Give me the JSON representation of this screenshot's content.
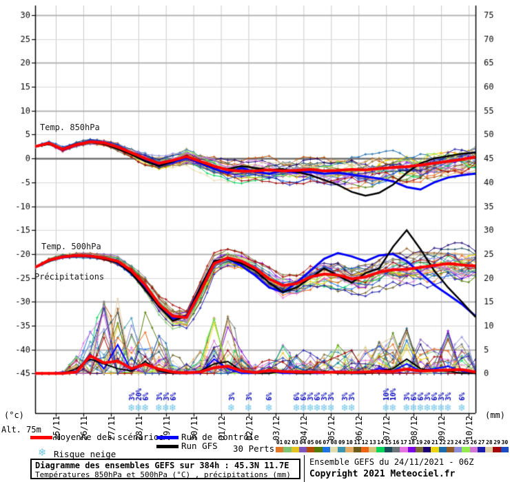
{
  "chart": {
    "alt_label": "Alt. 75m",
    "left_unit": "(°c)",
    "right_unit": "(mm)"
  },
  "chart_data": {
    "type": "line",
    "title": "Diagramme des ensembles GEFS sur 384h : 45.3N 11.7E",
    "x_axis": {
      "start": "24/11/2021 06Z",
      "hours_total": 384,
      "step_hours": 12,
      "day_labels": [
        "25/11",
        "26/11",
        "27/11",
        "28/11",
        "29/11",
        "30/11",
        "01/12",
        "02/12",
        "03/12",
        "04/12",
        "05/12",
        "06/12",
        "07/12",
        "08/12",
        "09/12",
        "10/12"
      ]
    },
    "y_left": {
      "label": "(°c)",
      "min": -45,
      "max": 30,
      "ticks": [
        30,
        25,
        20,
        15,
        10,
        5,
        0,
        -5,
        -10,
        -15,
        -20,
        -25,
        -30,
        -35,
        -40,
        -45
      ]
    },
    "y_right": {
      "label": "(mm)",
      "min": 0,
      "max": 75,
      "ticks": [
        75,
        70,
        65,
        60,
        55,
        50,
        45,
        40,
        35,
        30,
        25,
        20,
        15,
        10,
        5,
        0
      ]
    },
    "grid": {
      "minor_color": "#d6d6d6",
      "major_color": "#b4b4b4",
      "zero_color": "#6e6e6e",
      "vert_color": "#c8c8c8"
    },
    "series_styles": {
      "mean": {
        "color": "#ff0000",
        "width": 4
      },
      "control": {
        "color": "#0000ff",
        "width": 3
      },
      "gfs": {
        "color": "#000000",
        "width": 2.5
      }
    },
    "panels": {
      "t850": {
        "label": "Temp. 850hPa",
        "mean": [
          2.5,
          3.2,
          1.9,
          2.9,
          3.5,
          3.3,
          2.4,
          1.2,
          0.0,
          -1.0,
          -0.4,
          0.4,
          -0.6,
          -1.6,
          -2.4,
          -2.7,
          -2.6,
          -2.4,
          -2.6,
          -2.5,
          -2.3,
          -2.6,
          -2.5,
          -2.3,
          -2.4,
          -2.1,
          -1.9,
          -1.7,
          -1.4,
          -1.0,
          -0.6,
          -0.2,
          0.3
        ],
        "control": [
          2.5,
          3.1,
          1.8,
          2.8,
          3.6,
          3.2,
          2.2,
          1.0,
          -0.4,
          -1.4,
          -0.8,
          0.2,
          -1.0,
          -2.2,
          -3.0,
          -2.0,
          -2.8,
          -3.2,
          -2.6,
          -3.0,
          -2.8,
          -3.2,
          -3.0,
          -3.4,
          -3.8,
          -4.2,
          -4.8,
          -6.0,
          -6.5,
          -5.0,
          -4.0,
          -3.5,
          -3.2
        ],
        "gfs": [
          2.5,
          3.0,
          2.0,
          3.0,
          3.4,
          3.1,
          2.0,
          0.8,
          -0.6,
          -1.6,
          -0.6,
          0.6,
          -0.8,
          -1.8,
          -2.2,
          -1.6,
          -2.0,
          -2.4,
          -2.2,
          -2.8,
          -3.5,
          -4.5,
          -5.5,
          -7.0,
          -7.8,
          -7.2,
          -5.5,
          -3.0,
          -1.0,
          0.0,
          0.5,
          1.0,
          1.2
        ],
        "spread": [
          0.3,
          0.4,
          0.5,
          0.5,
          0.5,
          0.6,
          0.8,
          1.0,
          1.2,
          1.4,
          1.4,
          1.5,
          1.6,
          1.8,
          1.9,
          2.0,
          2.0,
          2.1,
          2.2,
          2.3,
          2.4,
          2.5,
          2.6,
          2.7,
          2.8,
          2.9,
          3.0,
          3.1,
          3.2,
          3.3,
          3.4,
          3.5,
          3.6
        ]
      },
      "t500": {
        "label": "Temp. 500hPa",
        "mean": [
          -22.8,
          -21.3,
          -20.6,
          -20.3,
          -20.4,
          -20.8,
          -21.5,
          -23.5,
          -26.5,
          -30.5,
          -33.0,
          -33.3,
          -28.0,
          -22.0,
          -20.8,
          -21.5,
          -23.0,
          -25.2,
          -26.6,
          -26.2,
          -24.8,
          -24.2,
          -24.4,
          -25.2,
          -24.8,
          -23.8,
          -23.3,
          -23.2,
          -22.8,
          -22.4,
          -22.0,
          -22.3,
          -22.5
        ],
        "control": [
          -22.8,
          -21.4,
          -20.7,
          -20.4,
          -20.3,
          -20.9,
          -21.8,
          -24.0,
          -27.0,
          -31.0,
          -33.5,
          -33.0,
          -27.0,
          -21.5,
          -21.0,
          -22.5,
          -24.5,
          -27.0,
          -28.0,
          -26.0,
          -23.5,
          -21.0,
          -19.8,
          -20.5,
          -21.5,
          -20.3,
          -20.0,
          -21.5,
          -24.0,
          -26.5,
          -28.5,
          -30.5,
          -33.0
        ],
        "gfs": [
          -22.8,
          -21.5,
          -20.5,
          -20.2,
          -20.5,
          -21.0,
          -21.8,
          -24.0,
          -27.5,
          -31.0,
          -34.0,
          -33.0,
          -27.0,
          -21.5,
          -21.0,
          -22.0,
          -23.5,
          -26.0,
          -28.0,
          -27.0,
          -25.0,
          -23.0,
          -24.5,
          -26.0,
          -24.0,
          -23.0,
          -18.5,
          -15.0,
          -19.0,
          -23.5,
          -27.0,
          -30.0,
          -33.2
        ],
        "spread": [
          0.3,
          0.4,
          0.4,
          0.5,
          0.5,
          0.6,
          0.8,
          1.0,
          1.3,
          1.6,
          1.8,
          1.8,
          2.2,
          1.8,
          1.5,
          1.6,
          1.9,
          2.2,
          2.4,
          2.5,
          2.6,
          2.7,
          2.8,
          2.9,
          3.0,
          3.1,
          3.2,
          3.3,
          3.4,
          3.5,
          3.6,
          3.7,
          3.8
        ]
      },
      "precip": {
        "label": "Précipitations",
        "mean": [
          0,
          0,
          0,
          0.3,
          3.7,
          2.2,
          2.6,
          1.0,
          1.9,
          0.9,
          0.3,
          0.1,
          0.3,
          1.2,
          1.5,
          0.5,
          0.2,
          0.6,
          0.4,
          0.3,
          0.3,
          0.2,
          0.3,
          0.2,
          0.3,
          0.5,
          0.4,
          0.9,
          0.5,
          0.6,
          0.7,
          0.8,
          0.3
        ],
        "control": [
          0,
          0,
          0,
          0.5,
          4.0,
          1.0,
          6.0,
          0.5,
          2.0,
          1.0,
          0,
          0,
          0,
          3.0,
          1.0,
          0,
          0,
          0.5,
          0,
          0,
          0,
          0,
          0.5,
          0,
          0,
          1.0,
          0.5,
          2.0,
          0.5,
          1.0,
          1.5,
          0.5,
          0
        ],
        "gfs": [
          0,
          0,
          0,
          1.0,
          3.0,
          2.0,
          1.0,
          0.5,
          2.5,
          0.5,
          0,
          0,
          0.5,
          2.0,
          2.5,
          0.5,
          0,
          0,
          0.5,
          0,
          0,
          0.5,
          0,
          0,
          0,
          0.5,
          1.0,
          3.0,
          1.0,
          0.5,
          0.5,
          0,
          0
        ],
        "member_max": [
          0,
          0,
          0.5,
          4,
          10,
          16,
          22,
          12,
          13,
          8,
          4,
          2,
          6,
          14,
          12,
          5,
          2,
          3,
          6,
          4,
          5,
          4,
          6,
          5,
          8,
          7,
          9,
          10,
          8,
          7,
          9,
          8,
          3
        ]
      }
    },
    "member_colors": [
      "#e07828",
      "#7cc474",
      "#e4c41c",
      "#7c54bc",
      "#b44c04",
      "#547c04",
      "#1c74e4",
      "#e4dcac",
      "#3c94b4",
      "#e4ac64",
      "#6c5c1c",
      "#ec6414",
      "#d4c47c",
      "#04d45c",
      "#1c4c5c",
      "#6c7478",
      "#e474e4",
      "#7c04e4",
      "#7c6c34",
      "#1c0474",
      "#ecd404",
      "#1c6cac",
      "#945c24",
      "#8c8cdc",
      "#94ec4c",
      "#d474d4",
      "#1c1cac",
      "#dccca4",
      "#a40404",
      "#1c4cc4"
    ],
    "snow_risk": {
      "flake_color": "#74c6e8",
      "label_color": "#0000bb",
      "items": [
        {
          "t": 84,
          "pct": "3%"
        },
        {
          "t": 90,
          "pct": "20%"
        },
        {
          "t": 96,
          "pct": "6%"
        },
        {
          "t": 108,
          "pct": "3%"
        },
        {
          "t": 114,
          "pct": "3%"
        },
        {
          "t": 120,
          "pct": "6%"
        },
        {
          "t": 171,
          "pct": "3%"
        },
        {
          "t": 186,
          "pct": "3%"
        },
        {
          "t": 204,
          "pct": "6%"
        },
        {
          "t": 228,
          "pct": "6%"
        },
        {
          "t": 234,
          "pct": "6%"
        },
        {
          "t": 240,
          "pct": "3%"
        },
        {
          "t": 246,
          "pct": "6%"
        },
        {
          "t": 252,
          "pct": "3%"
        },
        {
          "t": 258,
          "pct": "3%"
        },
        {
          "t": 270,
          "pct": "3%"
        },
        {
          "t": 276,
          "pct": "3%"
        },
        {
          "t": 306,
          "pct": "10%"
        },
        {
          "t": 312,
          "pct": "10%"
        },
        {
          "t": 324,
          "pct": "3%"
        },
        {
          "t": 330,
          "pct": "6%"
        },
        {
          "t": 336,
          "pct": "6%"
        },
        {
          "t": 342,
          "pct": "3%"
        },
        {
          "t": 348,
          "pct": "6%"
        },
        {
          "t": 354,
          "pct": "3%"
        },
        {
          "t": 360,
          "pct": "3%"
        },
        {
          "t": 372,
          "pct": "6%"
        }
      ]
    }
  },
  "legend": {
    "mean_label": "Moyenne des scénarios",
    "control_label": "Run de contrôle",
    "gfs_label": "Run GFS",
    "perts_label": "30 Perts.",
    "snow_label": "Risque neige",
    "pert_numbers": [
      "01",
      "02",
      "03",
      "04",
      "05",
      "06",
      "07",
      "08",
      "09",
      "10",
      "11",
      "12",
      "13",
      "14",
      "15",
      "16",
      "17",
      "18",
      "19",
      "20",
      "21",
      "22",
      "23",
      "24",
      "25",
      "26",
      "27",
      "28",
      "29",
      "30"
    ]
  },
  "footer": {
    "title": "Diagramme des ensembles GEFS sur 384h : 45.3N 11.7E",
    "subtitle": "Températures 850hPa et 500hPa (°C) , précipitations (mm)",
    "run_info": "Ensemble GEFS du 24/11/2021 - 06Z",
    "copyright": "Copyright 2021 Meteociel.fr"
  }
}
